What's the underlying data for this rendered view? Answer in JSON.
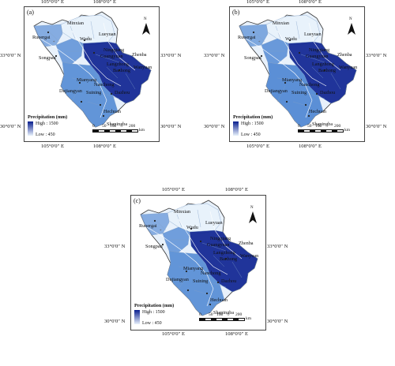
{
  "colors": {
    "low": "#e8f1fb",
    "mid": "#5b8fd6",
    "high": "#0a1f8f",
    "boundary": "#7f9fc8",
    "river": "#ffffff"
  },
  "north_label": "N",
  "legend": {
    "title": "Precipitation (mm)",
    "high": "High : 1500",
    "low": "Low : 450"
  },
  "scale": {
    "ticks": [
      "0",
      "50",
      "100",
      "200"
    ],
    "unit": "km"
  },
  "coords": {
    "lon1": "105°0′0″ E",
    "lon2": "108°0′0″ E",
    "lat1": "33°0′0″ N",
    "lat2": "30°0′0″ N"
  },
  "places": [
    "Minxian",
    "Ruoergai",
    "Wudu",
    "Lueyuan",
    "Songpan",
    "Ningqiang",
    "Zhenba",
    "Guangyuan",
    "Wanyuan",
    "Bazhong",
    "Mianyang",
    "Dujiangyan",
    "Suining",
    "Nanchong",
    "Dazhou",
    "Hechuan",
    "Shapingba",
    "Langzhong"
  ],
  "panels": [
    {
      "label": "(a)"
    },
    {
      "label": "(b)"
    },
    {
      "label": "(c)"
    }
  ]
}
